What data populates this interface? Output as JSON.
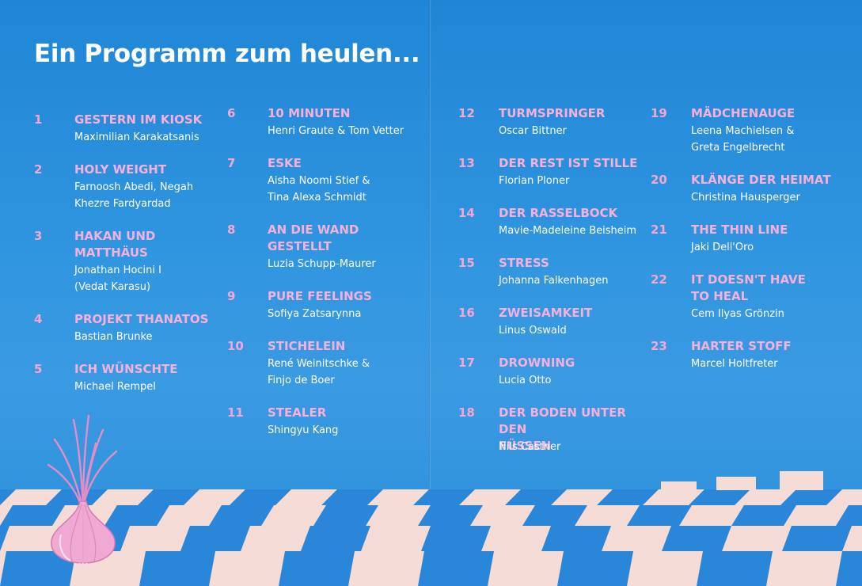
{
  "title": "Ein Programm zum heulen...",
  "columns": [
    [
      {
        "num": "1",
        "title": "GESTERN IM KIOSK",
        "credit": "Maximilian Karakatsanis"
      },
      {
        "num": "2",
        "title": "HOLY WEIGHT",
        "credit": "Farnoosh Abedi, Negah\nKhezre Fardyardad"
      },
      {
        "num": "3",
        "title": "HAKAN UND\nMATTHÄUS",
        "credit": "Jonathan Hocini I\n(Vedat Karasu)"
      },
      {
        "num": "4",
        "title": "PROJEKT THANATOS",
        "credit": "Bastian Brunke"
      },
      {
        "num": "5",
        "title": "ICH WÜNSCHTE",
        "credit": "Michael Rempel"
      }
    ],
    [
      {
        "num": "6",
        "title": "10 MINUTEN",
        "credit": "Henri Graute & Tom Vetter"
      },
      {
        "num": "7",
        "title": "ESKE",
        "credit": "Aisha Noomi Stief &\nTina Alexa Schmidt"
      },
      {
        "num": "8",
        "title": "AN DIE WAND\nGESTELLT",
        "credit": "Luzia Schupp-Maurer"
      },
      {
        "num": "9",
        "title": "PURE FEELINGS",
        "credit": "Sofiya Zatsarynna"
      },
      {
        "num": "10",
        "title": "STICHELEIN",
        "credit": "René Weinitschke &\nFinjo de Boer"
      },
      {
        "num": "11",
        "title": "STEALER",
        "credit": "Shingyu Kang"
      }
    ],
    [
      {
        "num": "12",
        "title": "TURMSPRINGER",
        "credit": "Oscar Bittner"
      },
      {
        "num": "13",
        "title": "DER REST IST STILLE",
        "credit": "Florian Ploner"
      },
      {
        "num": "14",
        "title": "DER RASSELBOCK",
        "credit": "Mavie-Madeleine Beisheim"
      },
      {
        "num": "15",
        "title": "STRESS",
        "credit": "Johanna Falkenhagen"
      },
      {
        "num": "16",
        "title": "ZWEISAMKEIT",
        "credit": "Linus Oswald"
      },
      {
        "num": "17",
        "title": "DROWNING",
        "credit": "Lucia Otto"
      },
      {
        "num": "18",
        "title": "DER BODEN UNTER DEN\nFÜSSEN",
        "credit": "Nils Castner"
      }
    ],
    [
      {
        "num": "19",
        "title": "MÄDCHENAUGE",
        "credit": "Leena Machielsen &\nGreta Engelbrecht"
      },
      {
        "num": "20",
        "title": "KLÄNGE DER HEIMAT",
        "credit": "Christina Hausperger"
      },
      {
        "num": "21",
        "title": "THE THIN LINE",
        "credit": "Jaki Dell'Oro"
      },
      {
        "num": "22",
        "title": "IT DOESN'T HAVE\nTO HEAL",
        "credit": "Cem Ilyas Grönzin"
      },
      {
        "num": "23",
        "title": "HARTER STOFF",
        "credit": "Marcel Holtfreter"
      }
    ]
  ],
  "colors": {
    "background": "#2a8fdb",
    "title": "#ffffff",
    "entry_title": "#f7b0dd",
    "credit": "#ffffff",
    "tile_light": "#f5dcd6",
    "tile_dark": "#2a86d8",
    "onion": "#f0a9d2"
  },
  "illustration": {
    "icons": [
      "onion-icon",
      "checkered-floor"
    ]
  }
}
